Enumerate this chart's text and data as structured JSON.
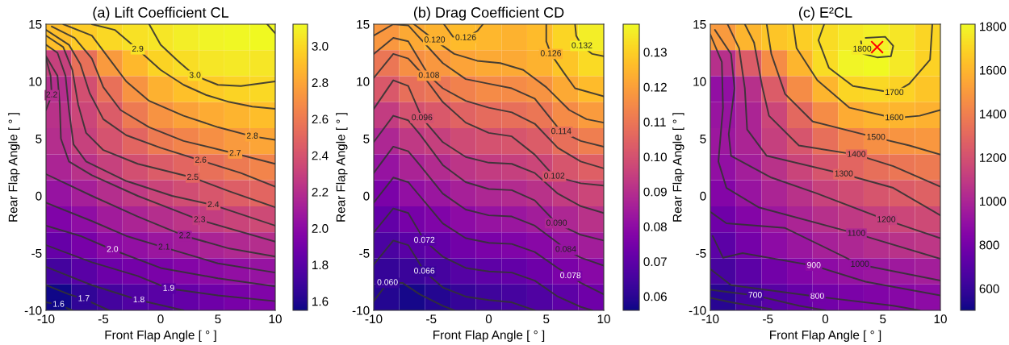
{
  "chart_data": [
    {
      "type": "heatmap",
      "title": "(a) Lift Coefficient CL",
      "xlabel": "Front Flap Angle [ ° ]",
      "ylabel": "Rear Flap Angle [ ° ]",
      "x": [
        -8.89,
        -6.67,
        -4.44,
        -2.22,
        0,
        2.22,
        4.44,
        6.67,
        8.89
      ],
      "y": [
        13.86,
        11.59,
        9.32,
        7.05,
        4.77,
        2.5,
        0.23,
        -2.05,
        -4.32,
        -6.59,
        -8.86
      ],
      "cells": [
        [
          2.9,
          2.95,
          3.0,
          3.03,
          3.05,
          3.08,
          3.1,
          3.11,
          3.12
        ],
        [
          2.3,
          2.55,
          2.75,
          2.88,
          2.98,
          3.02,
          3.05,
          3.06,
          3.05
        ],
        [
          2.2,
          2.38,
          2.55,
          2.72,
          2.85,
          2.91,
          2.95,
          2.98,
          3.0
        ],
        [
          2.22,
          2.33,
          2.45,
          2.6,
          2.72,
          2.78,
          2.82,
          2.86,
          2.9
        ],
        [
          2.2,
          2.3,
          2.4,
          2.5,
          2.6,
          2.65,
          2.7,
          2.75,
          2.8
        ],
        [
          2.15,
          2.22,
          2.3,
          2.38,
          2.45,
          2.5,
          2.55,
          2.6,
          2.65
        ],
        [
          2.05,
          2.12,
          2.2,
          2.26,
          2.32,
          2.37,
          2.42,
          2.46,
          2.5
        ],
        [
          1.95,
          2.02,
          2.1,
          2.15,
          2.2,
          2.24,
          2.28,
          2.32,
          2.35
        ],
        [
          1.85,
          1.92,
          2.0,
          2.03,
          2.07,
          2.1,
          2.14,
          2.17,
          2.2
        ],
        [
          1.72,
          1.8,
          1.87,
          1.9,
          1.93,
          1.97,
          2.0,
          2.03,
          2.05
        ],
        [
          1.56,
          1.65,
          1.72,
          1.76,
          1.8,
          1.84,
          1.88,
          1.92,
          1.95
        ]
      ],
      "clim": [
        1.55,
        3.12
      ],
      "cticks": [
        {
          "value": 1.6,
          "label": "1.6"
        },
        {
          "value": 1.8,
          "label": "1.8"
        },
        {
          "value": 2.0,
          "label": "2.0"
        },
        {
          "value": 2.2,
          "label": "2.2"
        },
        {
          "value": 2.4,
          "label": "2.4"
        },
        {
          "value": 2.6,
          "label": "2.6"
        },
        {
          "value": 2.8,
          "label": "2.8"
        },
        {
          "value": 3.0,
          "label": "3.0"
        }
      ],
      "xlim": [
        -10,
        10
      ],
      "ylim": [
        -10,
        15
      ],
      "xticks": [
        -10,
        -5,
        0,
        5,
        10
      ],
      "yticks": [
        -10,
        -5,
        0,
        5,
        10,
        15
      ],
      "grid": false,
      "series": [
        {
          "type": "line",
          "color": "#333333",
          "x": [
            9.3,
            10
          ],
          "values": [
            15,
            14.2
          ]
        },
        {
          "type": "line",
          "color": "#333333",
          "x": [
            -1.0,
            0,
            1.5,
            3,
            5,
            7,
            10
          ],
          "values": [
            15,
            13.2,
            11.8,
            10.5,
            9.7,
            9.6,
            10.0
          ]
        },
        {
          "type": "line",
          "color": "#333333",
          "x": [
            -6,
            -4,
            -2,
            0,
            2,
            4,
            6,
            8,
            10
          ],
          "values": [
            15,
            14.5,
            12.8,
            11,
            9.7,
            8.8,
            8.2,
            7.8,
            7.6
          ]
        },
        {
          "type": "line",
          "color": "#333333",
          "x": [
            -8.5,
            -6,
            -4.5,
            -3,
            -1,
            2,
            5,
            8,
            10
          ],
          "values": [
            15,
            14,
            12,
            10,
            8.3,
            7,
            6.0,
            5.2,
            4.9
          ]
        },
        {
          "type": "line",
          "color": "#333333",
          "x": [
            -9.5,
            -7.5,
            -6,
            -5,
            -3.5,
            -1,
            2,
            6.5,
            10
          ],
          "values": [
            14.8,
            13.8,
            12,
            9.5,
            7.5,
            6,
            4.8,
            3.7,
            2.8
          ]
        },
        {
          "type": "line",
          "color": "#333333",
          "x": [
            -10,
            -8,
            -7,
            -6.2,
            -5,
            -3,
            0,
            3.5,
            7,
            10
          ],
          "values": [
            14.5,
            13.2,
            11.5,
            9,
            6.7,
            5.3,
            4.2,
            3.1,
            2,
            0.8
          ]
        },
        {
          "type": "line",
          "color": "#333333",
          "x": [
            -10,
            -8.5,
            -7.7,
            -7.2,
            -6.5,
            -5,
            -2,
            2.8,
            6,
            10
          ],
          "values": [
            14.0,
            13,
            11,
            8,
            5.5,
            4,
            2.8,
            1.6,
            0.4,
            -1.0
          ]
        },
        {
          "type": "line",
          "color": "#333333",
          "x": [
            -10,
            -9,
            -8.3,
            -8,
            -7.6,
            -6.5,
            -3,
            1,
            4.6,
            10
          ],
          "values": [
            13.2,
            12.5,
            10.5,
            7.5,
            4.5,
            3,
            1.3,
            0,
            -0.8,
            -2.6
          ]
        },
        {
          "type": "line",
          "color": "#333333",
          "x": [
            -10,
            -9,
            -8.8,
            -8.7,
            -8.0,
            -6,
            -2,
            3.4,
            10
          ],
          "values": [
            12.2,
            10.5,
            8,
            5,
            3.0,
            1.8,
            0,
            -2.1,
            -4.0
          ]
        },
        {
          "type": "line",
          "color": "#333333",
          "x": [
            -10,
            -9.6,
            -9.5,
            -10
          ],
          "values": [
            12.0,
            10.5,
            8.8,
            7.5
          ]
        },
        {
          "type": "line",
          "color": "#333333",
          "x": [
            -10,
            -6,
            -2,
            2.1,
            6,
            10
          ],
          "values": [
            1.9,
            0,
            -1.8,
            -3.5,
            -4.6,
            -5.3
          ]
        },
        {
          "type": "line",
          "color": "#333333",
          "x": [
            -10,
            -6,
            -3,
            0.3,
            5,
            10
          ],
          "values": [
            -0.6,
            -2.2,
            -3.5,
            -4.5,
            -5.9,
            -6.7
          ]
        },
        {
          "type": "line",
          "color": "#333333",
          "x": [
            -10,
            -7,
            -4.2,
            0,
            5,
            10
          ],
          "values": [
            -2.6,
            -3.5,
            -4.7,
            -6.3,
            -7.2,
            -7.9
          ]
        },
        {
          "type": "line",
          "color": "#333333",
          "x": [
            -10,
            -6,
            -2,
            0.7,
            5,
            10
          ],
          "values": [
            -4.3,
            -5.8,
            -7,
            -8.1,
            -8.7,
            -9.2
          ]
        },
        {
          "type": "line",
          "color": "#333333",
          "x": [
            -10,
            -6,
            -1.9,
            2
          ],
          "values": [
            -6.2,
            -7.8,
            -9.1,
            -10
          ]
        },
        {
          "type": "line",
          "color": "#333333",
          "x": [
            -10,
            -8,
            -6.7,
            -4.5
          ],
          "values": [
            -7.8,
            -8.6,
            -9.0,
            -10
          ]
        },
        {
          "type": "line",
          "color": "#333333",
          "x": [
            -10,
            -8.9,
            -7.7
          ],
          "values": [
            -9.3,
            -9.5,
            -10
          ]
        }
      ],
      "annotations": [
        {
          "text": "2.9",
          "x": -2,
          "y": 12.8
        },
        {
          "text": "3.0",
          "x": 3,
          "y": 10.5
        },
        {
          "text": "2.8",
          "x": 8,
          "y": 5.2
        },
        {
          "text": "2.7",
          "x": 6.5,
          "y": 3.7
        },
        {
          "text": "2.6",
          "x": 3.5,
          "y": 3.1
        },
        {
          "text": "2.5",
          "x": 2.8,
          "y": 1.6
        },
        {
          "text": "2.4",
          "x": 4.6,
          "y": -0.8
        },
        {
          "text": "2.3",
          "x": 3.4,
          "y": -2.1
        },
        {
          "text": "2.2",
          "x": -9.5,
          "y": 8.8
        },
        {
          "text": "2.2",
          "x": 2.1,
          "y": -3.5
        },
        {
          "text": "2.1",
          "x": 0.3,
          "y": -4.5
        },
        {
          "text": "2.0",
          "x": -4.2,
          "y": -4.7
        },
        {
          "text": "1.9",
          "x": 0.7,
          "y": -8.1
        },
        {
          "text": "1.8",
          "x": -1.9,
          "y": -9.1
        },
        {
          "text": "1.7",
          "x": -6.7,
          "y": -9.0
        },
        {
          "text": "1.6",
          "x": -8.9,
          "y": -9.5
        }
      ]
    },
    {
      "type": "heatmap",
      "title": "(b) Drag Coefficient CD",
      "xlabel": "Front Flap Angle [ ° ]",
      "ylabel": "Rear Flap Angle [ ° ]",
      "x": [
        -8.89,
        -6.67,
        -4.44,
        -2.22,
        0,
        2.22,
        4.44,
        6.67,
        8.89
      ],
      "y": [
        13.86,
        11.59,
        9.32,
        7.05,
        4.77,
        2.5,
        0.23,
        -2.05,
        -4.32,
        -6.59,
        -8.86
      ],
      "cells": [
        [
          0.118,
          0.122,
          0.124,
          0.126,
          0.125,
          0.124,
          0.126,
          0.131,
          0.136
        ],
        [
          0.11,
          0.116,
          0.118,
          0.121,
          0.122,
          0.122,
          0.124,
          0.128,
          0.132
        ],
        [
          0.102,
          0.108,
          0.11,
          0.113,
          0.115,
          0.115,
          0.117,
          0.122,
          0.126
        ],
        [
          0.094,
          0.1,
          0.102,
          0.105,
          0.107,
          0.108,
          0.11,
          0.115,
          0.119
        ],
        [
          0.088,
          0.093,
          0.095,
          0.098,
          0.1,
          0.101,
          0.103,
          0.108,
          0.112
        ],
        [
          0.082,
          0.087,
          0.089,
          0.092,
          0.094,
          0.095,
          0.097,
          0.101,
          0.104
        ],
        [
          0.076,
          0.081,
          0.083,
          0.086,
          0.088,
          0.089,
          0.091,
          0.094,
          0.097
        ],
        [
          0.071,
          0.075,
          0.077,
          0.08,
          0.082,
          0.083,
          0.085,
          0.088,
          0.091
        ],
        [
          0.066,
          0.069,
          0.071,
          0.074,
          0.076,
          0.077,
          0.079,
          0.082,
          0.085
        ],
        [
          0.062,
          0.063,
          0.065,
          0.068,
          0.07,
          0.071,
          0.073,
          0.076,
          0.079
        ],
        [
          0.059,
          0.057,
          0.059,
          0.062,
          0.064,
          0.065,
          0.067,
          0.07,
          0.073
        ]
      ],
      "clim": [
        0.056,
        0.138
      ],
      "cticks": [
        0.06,
        0.07,
        0.08,
        0.09,
        {
          "value": 0.1,
          "label": "0.10"
        },
        0.11,
        0.12,
        0.13
      ],
      "xlim": [
        -10,
        10
      ],
      "ylim": [
        -10,
        15
      ],
      "xticks": [
        -10,
        -5,
        0,
        5,
        10
      ],
      "yticks": [
        -10,
        -5,
        0,
        5,
        10,
        15
      ],
      "grid": false,
      "series": [
        {
          "type": "line",
          "color": "#333333",
          "x": [
            -10,
            -8.8,
            -7.5,
            -6,
            -4,
            -3
          ],
          "values": [
            -9.2,
            -7.6,
            -7.6,
            -8.6,
            -9.6,
            -10
          ]
        },
        {
          "type": "line",
          "color": "#333333",
          "x": [
            -10,
            -8.3,
            -7,
            -5.6,
            -4,
            -2,
            0,
            2,
            4
          ],
          "values": [
            -6,
            -3.9,
            -4.3,
            -6.6,
            -8.0,
            -8.8,
            -9.1,
            -9.3,
            -10
          ]
        },
        {
          "type": "line",
          "color": "#333333",
          "x": [
            -10,
            -8.3,
            -7,
            -5.6,
            -4,
            -2,
            0,
            2,
            4,
            6,
            8,
            9
          ],
          "values": [
            -3.2,
            -1.1,
            -1.5,
            -3.9,
            -5.3,
            -6.3,
            -6.6,
            -6.7,
            -7.4,
            -8.8,
            -9.7,
            -10
          ]
        },
        {
          "type": "line",
          "color": "#333333",
          "x": [
            -10,
            -8.3,
            -7,
            -6,
            -4,
            -2,
            0,
            2,
            4,
            6,
            7.1,
            8,
            10
          ],
          "values": [
            -0.6,
            1.6,
            1.2,
            0,
            -2.4,
            -3.7,
            -4.1,
            -4.2,
            -4.9,
            -6.3,
            -7.0,
            -7.6,
            -8.6
          ]
        },
        {
          "type": "line",
          "color": "#333333",
          "x": [
            -10,
            -8.3,
            -7,
            -6,
            -4,
            -2,
            0,
            2,
            4,
            6,
            6.7,
            8,
            10
          ],
          "values": [
            2.0,
            4.3,
            3.9,
            2.7,
            0.2,
            -1.2,
            -1.7,
            -1.8,
            -2.6,
            -4.1,
            -4.7,
            -5.4,
            -6.1
          ]
        },
        {
          "type": "line",
          "color": "#333333",
          "x": [
            -10,
            -8.3,
            -7,
            -6,
            -4,
            -2,
            0,
            2,
            4,
            5.9,
            8,
            10
          ],
          "values": [
            4.7,
            7.0,
            6.6,
            5.4,
            2.7,
            1.2,
            0.6,
            0.5,
            -0.4,
            -2.4,
            -3.4,
            -3.9
          ]
        },
        {
          "type": "line",
          "color": "#333333",
          "x": [
            -10,
            -8.3,
            -7,
            -5.8,
            -4,
            -2,
            0,
            2,
            4,
            6,
            8,
            10
          ],
          "values": [
            7.6,
            10.1,
            9.6,
            6.8,
            4.7,
            3.4,
            2.9,
            2.8,
            2.0,
            0.2,
            -0.9,
            -1.5
          ]
        },
        {
          "type": "line",
          "color": "#333333",
          "x": [
            -10,
            -8.3,
            -7,
            -6,
            -4,
            -2,
            0,
            2,
            4,
            5.7,
            8,
            10
          ],
          "values": [
            10.3,
            12.4,
            12.0,
            10.9,
            8.2,
            6.4,
            5.5,
            5.2,
            3.6,
            1.7,
            1.1,
            0.9
          ]
        },
        {
          "type": "line",
          "color": "#333333",
          "x": [
            -10,
            -8.3,
            -7,
            -5.2,
            -4,
            -2,
            0,
            2,
            4,
            6,
            8,
            10
          ],
          "values": [
            12.4,
            13.8,
            13.5,
            10.5,
            9.4,
            8.3,
            7.7,
            7.3,
            6.3,
            4.2,
            3.0,
            2.4
          ]
        },
        {
          "type": "line",
          "color": "#333333",
          "x": [
            -10,
            -8.3,
            -7,
            -6,
            -4,
            -2,
            0,
            2,
            4,
            6.3,
            8,
            10
          ],
          "values": [
            14.0,
            15.0,
            14.9,
            13.8,
            11.6,
            10.2,
            9.8,
            9.4,
            8.5,
            5.6,
            4.8,
            4.3
          ]
        },
        {
          "type": "line",
          "color": "#333333",
          "x": [
            -6.5,
            -4.7,
            -3,
            -1,
            1,
            3,
            5,
            7,
            8.5,
            10
          ],
          "values": [
            15,
            13.6,
            12.4,
            11.8,
            11.6,
            11.0,
            9.5,
            7.5,
            6.7,
            6.4
          ]
        },
        {
          "type": "line",
          "color": "#333333",
          "x": [
            -3.9,
            -3.1,
            -2,
            -1,
            -0.5
          ],
          "values": [
            15,
            13.9,
            13.8,
            14.4,
            15
          ]
        },
        {
          "type": "line",
          "color": "#333333",
          "x": [
            5,
            5,
            5.4,
            6.5,
            7.5,
            10
          ],
          "values": [
            15,
            13.5,
            12.4,
            10.8,
            9.4,
            8.7
          ]
        },
        {
          "type": "line",
          "color": "#333333",
          "x": [
            7.5,
            7.6,
            8.1,
            9,
            10
          ],
          "values": [
            15,
            14.0,
            13.1,
            12.4,
            12.2
          ]
        }
      ],
      "annotations": [
        {
          "text": "0.126",
          "x": -2,
          "y": 13.8
        },
        {
          "text": "0.120",
          "x": -4.7,
          "y": 13.6
        },
        {
          "text": "0.126",
          "x": 5.4,
          "y": 12.4
        },
        {
          "text": "0.132",
          "x": 8.1,
          "y": 13.1
        },
        {
          "text": "0.108",
          "x": -5.2,
          "y": 10.5
        },
        {
          "text": "0.096",
          "x": -5.8,
          "y": 6.8
        },
        {
          "text": "0.114",
          "x": 6.3,
          "y": 5.6
        },
        {
          "text": "0.102",
          "x": 5.7,
          "y": 1.7
        },
        {
          "text": "0.090",
          "x": 5.9,
          "y": -2.4
        },
        {
          "text": "0.084",
          "x": 6.7,
          "y": -4.7
        },
        {
          "text": "0.078",
          "x": 7.1,
          "y": -7.0
        },
        {
          "text": "0.072",
          "x": -5.6,
          "y": -3.9
        },
        {
          "text": "0.066",
          "x": -5.6,
          "y": -6.6
        },
        {
          "text": "0.060",
          "x": -8.8,
          "y": -7.6
        }
      ]
    },
    {
      "type": "heatmap",
      "title": "(c) E²CL",
      "xlabel": "Front Flap Angle [ ° ]",
      "ylabel": "Rear Flap Angle [ ° ]",
      "x": [
        -8.89,
        -6.67,
        -4.44,
        -2.22,
        0,
        2.22,
        4.44,
        6.67,
        8.89
      ],
      "y": [
        13.86,
        11.59,
        9.32,
        7.05,
        4.77,
        2.5,
        0.23,
        -2.05,
        -4.32,
        -6.59,
        -8.86
      ],
      "cells": [
        [
          1500,
          1600,
          1650,
          1680,
          1720,
          1760,
          1780,
          1750,
          1700
        ],
        [
          1050,
          1250,
          1450,
          1600,
          1720,
          1790,
          1805,
          1760,
          1690
        ],
        [
          900,
          1050,
          1250,
          1450,
          1600,
          1700,
          1710,
          1690,
          1650
        ],
        [
          920,
          1000,
          1150,
          1300,
          1450,
          1560,
          1590,
          1600,
          1580
        ],
        [
          940,
          1000,
          1120,
          1220,
          1330,
          1420,
          1460,
          1480,
          1490
        ],
        [
          900,
          970,
          1060,
          1140,
          1220,
          1290,
          1330,
          1360,
          1380
        ],
        [
          850,
          920,
          1000,
          1060,
          1130,
          1180,
          1220,
          1250,
          1270
        ],
        [
          780,
          850,
          940,
          1000,
          1050,
          1090,
          1120,
          1150,
          1170
        ],
        [
          720,
          800,
          880,
          930,
          980,
          1010,
          1040,
          1060,
          1080
        ],
        [
          650,
          720,
          790,
          840,
          880,
          910,
          930,
          950,
          970
        ],
        [
          560,
          640,
          700,
          750,
          790,
          820,
          840,
          860,
          880
        ]
      ],
      "clim": [
        500,
        1810
      ],
      "cticks": [
        600,
        800,
        1000,
        1200,
        1400,
        1600,
        1800
      ],
      "xlim": [
        -10,
        10
      ],
      "ylim": [
        -10,
        15
      ],
      "xticks": [
        -10,
        -5,
        0,
        5,
        10
      ],
      "yticks": [
        -10,
        -5,
        0,
        5,
        10,
        15
      ],
      "grid": false,
      "series": [
        {
          "type": "line",
          "color": "#333333",
          "x": [
            3.5,
            5.2,
            5.9,
            5.7,
            4.5,
            3.3,
            3.2,
            3.1
          ],
          "values": [
            13.8,
            13.9,
            13.1,
            12.2,
            12.1,
            12.4,
            12.8,
            13.5
          ]
        },
        {
          "type": "line",
          "color": "#333333",
          "x": [
            -0.1,
            -0.6,
            0.3,
            2.4,
            6.0,
            7.3,
            9.1,
            9.3
          ],
          "values": [
            15,
            13.6,
            11.2,
            9.6,
            9.0,
            9.8,
            11.9,
            15
          ]
        },
        {
          "type": "line",
          "color": "#333333",
          "x": [
            -2.8,
            -2.5,
            -0.7,
            2.1,
            6,
            8.2,
            10
          ],
          "values": [
            15,
            12.9,
            10.1,
            7.7,
            6.8,
            7.0,
            7.5
          ]
        },
        {
          "type": "line",
          "color": "#333333",
          "x": [
            -5.1,
            -4.7,
            -3.5,
            -1.1,
            4.4,
            7.3,
            10
          ],
          "values": [
            15,
            12.4,
            8.9,
            6.5,
            5.1,
            4.4,
            3.6
          ]
        },
        {
          "type": "line",
          "color": "#333333",
          "x": [
            -7.0,
            -6.2,
            -5.5,
            -4.9,
            -2.3,
            2.7,
            5.9,
            10
          ],
          "values": [
            15,
            13.4,
            9.6,
            7.0,
            4.4,
            3.6,
            2.6,
            0.8
          ]
        },
        {
          "type": "line",
          "color": "#333333",
          "x": [
            -8.5,
            -7.5,
            -7.0,
            -6.8,
            -5.1,
            1.6,
            5.9,
            10
          ],
          "values": [
            15,
            12.9,
            9.4,
            5.8,
            3.5,
            1.9,
            0.7,
            -1.7
          ]
        },
        {
          "type": "line",
          "color": "#333333",
          "x": [
            -9.6,
            -8.2,
            -7.9,
            -8.4,
            -8.2,
            -4.7,
            -0.7,
            5.3,
            10
          ],
          "values": [
            14.5,
            12.4,
            9.4,
            5.4,
            3.5,
            1.6,
            0.2,
            -2.1,
            -3.7
          ]
        },
        {
          "type": "line",
          "color": "#333333",
          "x": [
            -10,
            -9,
            -8.9,
            -9.3,
            -8.6,
            -5.8,
            2.7,
            10
          ],
          "values": [
            14.1,
            11.7,
            7.7,
            3.0,
            0.7,
            -1.0,
            -3.3,
            -5.5
          ]
        },
        {
          "type": "line",
          "color": "#333333",
          "x": [
            -10,
            -8.6,
            -3.5,
            3.0,
            10
          ],
          "values": [
            -1.4,
            -2.4,
            -2.8,
            -6.0,
            -7.4
          ]
        },
        {
          "type": "line",
          "color": "#333333",
          "x": [
            -9.8,
            -8.9,
            -7.2,
            -1.0,
            3.5,
            10
          ],
          "values": [
            -3.5,
            -5.4,
            -5.0,
            -6.1,
            -7.5,
            -8.7
          ]
        },
        {
          "type": "line",
          "color": "#333333",
          "x": [
            -10,
            -8.2,
            -0.7,
            5.9,
            8.2
          ],
          "values": [
            -6.4,
            -7.8,
            -8.8,
            -9.6,
            -10
          ]
        },
        {
          "type": "line",
          "color": "#333333",
          "x": [
            -10,
            -6.1,
            -2.3,
            0
          ],
          "values": [
            -8.2,
            -8.7,
            -9.6,
            -10
          ]
        },
        {
          "type": "line",
          "color": "#333333",
          "x": [
            -10,
            -8.2,
            -4.7
          ],
          "values": [
            -8.9,
            -9.3,
            -9.9
          ]
        },
        {
          "type": "scatter",
          "x": [
            4.5
          ],
          "values": [
            13
          ],
          "color": "#ff0000",
          "marker": "cross"
        }
      ],
      "annotations": [
        {
          "text": "1800",
          "x": 3.2,
          "y": 12.8
        },
        {
          "text": "1700",
          "x": 6.0,
          "y": 9.0
        },
        {
          "text": "1600",
          "x": 6.0,
          "y": 6.8
        },
        {
          "text": "1500",
          "x": 4.4,
          "y": 5.1
        },
        {
          "text": "1400",
          "x": 2.7,
          "y": 3.6
        },
        {
          "text": "1300",
          "x": 1.6,
          "y": 1.9
        },
        {
          "text": "1200",
          "x": 5.3,
          "y": -2.1
        },
        {
          "text": "1100",
          "x": 2.7,
          "y": -3.3
        },
        {
          "text": "1000",
          "x": 3.0,
          "y": -6.0
        },
        {
          "text": "900",
          "x": -1.0,
          "y": -6.1
        },
        {
          "text": "800",
          "x": -0.7,
          "y": -8.8
        },
        {
          "text": "700",
          "x": -6.1,
          "y": -8.7
        }
      ]
    }
  ]
}
